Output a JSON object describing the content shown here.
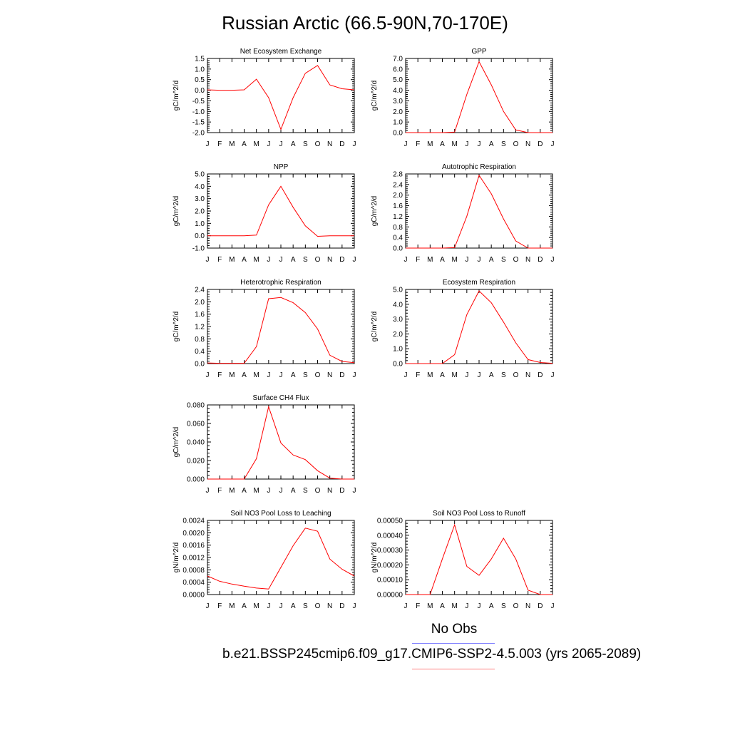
{
  "title": "Russian Arctic (66.5-90N,70-170E)",
  "legend": {
    "obs_label": "No Obs",
    "case_label": "b.e21.BSSP245cmip6.f09_g17.CMIP6-SSP2-4.5.003 (yrs 2065-2089)",
    "obs_color": "#8080ff",
    "case_color": "#ff8080"
  },
  "colors": {
    "series": "#ff0000",
    "axis": "#000000"
  },
  "chart_data": [
    {
      "type": "line",
      "title": "Net Ecosystem Exchange",
      "ylabel": "gC/m^2/d",
      "ylim": [
        -2.0,
        1.5
      ],
      "yticks": [
        "-2.0",
        "-1.5",
        "-1.0",
        "-0.5",
        "0.0",
        "0.5",
        "1.0",
        "1.5"
      ],
      "x": [
        "J",
        "F",
        "M",
        "A",
        "M",
        "J",
        "J",
        "A",
        "S",
        "O",
        "N",
        "D",
        "J"
      ],
      "values": [
        0.02,
        0.0,
        0.0,
        0.02,
        0.52,
        -0.35,
        -1.85,
        -0.35,
        0.8,
        1.17,
        0.25,
        0.07,
        0.02
      ]
    },
    {
      "type": "line",
      "title": "GPP",
      "ylabel": "gC/m^2/d",
      "ylim": [
        0.0,
        7.0
      ],
      "yticks": [
        "0.0",
        "1.0",
        "2.0",
        "3.0",
        "4.0",
        "5.0",
        "6.0",
        "7.0"
      ],
      "x": [
        "J",
        "F",
        "M",
        "A",
        "M",
        "J",
        "J",
        "A",
        "S",
        "O",
        "N",
        "D",
        "J"
      ],
      "values": [
        0.0,
        0.0,
        0.0,
        0.0,
        0.05,
        3.6,
        6.7,
        4.5,
        2.0,
        0.25,
        0.0,
        0.0,
        0.0
      ]
    },
    {
      "type": "line",
      "title": "NPP",
      "ylabel": "gC/m^2/d",
      "ylim": [
        -1.0,
        5.0
      ],
      "yticks": [
        "-1.0",
        "0.0",
        "1.0",
        "2.0",
        "3.0",
        "4.0",
        "5.0"
      ],
      "x": [
        "J",
        "F",
        "M",
        "A",
        "M",
        "J",
        "J",
        "A",
        "S",
        "O",
        "N",
        "D",
        "J"
      ],
      "values": [
        0.0,
        0.0,
        0.0,
        0.0,
        0.05,
        2.5,
        4.0,
        2.3,
        0.8,
        -0.05,
        0.0,
        0.0,
        0.0
      ]
    },
    {
      "type": "line",
      "title": "Autotrophic Respiration",
      "ylabel": "gC/m^2/d",
      "ylim": [
        0.0,
        2.8
      ],
      "yticks": [
        "0.0",
        "0.4",
        "0.8",
        "1.2",
        "1.6",
        "2.0",
        "2.4",
        "2.8"
      ],
      "x": [
        "J",
        "F",
        "M",
        "A",
        "M",
        "J",
        "J",
        "A",
        "S",
        "O",
        "N",
        "D",
        "J"
      ],
      "values": [
        0.0,
        0.0,
        0.0,
        0.0,
        0.02,
        1.2,
        2.75,
        2.05,
        1.1,
        0.27,
        0.0,
        0.0,
        0.0
      ]
    },
    {
      "type": "line",
      "title": "Heterotrophic Respiration",
      "ylabel": "gC/m^2/d",
      "ylim": [
        0.0,
        2.4
      ],
      "yticks": [
        "0.0",
        "0.4",
        "0.8",
        "1.2",
        "1.6",
        "2.0",
        "2.4"
      ],
      "x": [
        "J",
        "F",
        "M",
        "A",
        "M",
        "J",
        "J",
        "A",
        "S",
        "O",
        "N",
        "D",
        "J"
      ],
      "values": [
        0.02,
        0.01,
        0.01,
        0.01,
        0.55,
        2.1,
        2.14,
        1.97,
        1.65,
        1.12,
        0.27,
        0.07,
        0.03
      ]
    },
    {
      "type": "line",
      "title": "Ecosystem Respiration",
      "ylabel": "gC/m^2/d",
      "ylim": [
        0.0,
        5.0
      ],
      "yticks": [
        "0.0",
        "1.0",
        "2.0",
        "3.0",
        "4.0",
        "5.0"
      ],
      "x": [
        "J",
        "F",
        "M",
        "A",
        "M",
        "J",
        "J",
        "A",
        "S",
        "O",
        "N",
        "D",
        "J"
      ],
      "values": [
        0.0,
        0.0,
        0.0,
        0.0,
        0.6,
        3.3,
        4.9,
        4.1,
        2.8,
        1.4,
        0.27,
        0.07,
        0.02
      ]
    },
    {
      "type": "line",
      "title": "Surface CH4 Flux",
      "ylabel": "gC/m^2/d",
      "ylim": [
        0.0,
        0.08
      ],
      "yticks": [
        "0.000",
        "0.020",
        "0.040",
        "0.060",
        "0.080"
      ],
      "x": [
        "J",
        "F",
        "M",
        "A",
        "M",
        "J",
        "J",
        "A",
        "S",
        "O",
        "N",
        "D",
        "J"
      ],
      "values": [
        0.0,
        0.0,
        0.0,
        0.0,
        0.022,
        0.078,
        0.039,
        0.026,
        0.021,
        0.009,
        0.001,
        0.0,
        0.0
      ]
    },
    {
      "type": "line",
      "title": "Soil NO3 Pool Loss to Leaching",
      "ylabel": "gN/m^2/d",
      "ylim": [
        0.0,
        0.0024
      ],
      "yticks": [
        "0.0000",
        "0.0004",
        "0.0008",
        "0.0012",
        "0.0016",
        "0.0020",
        "0.0024"
      ],
      "x": [
        "J",
        "F",
        "M",
        "A",
        "M",
        "J",
        "J",
        "A",
        "S",
        "O",
        "N",
        "D",
        "J"
      ],
      "values": [
        0.0006,
        0.00043,
        0.00034,
        0.00027,
        0.00021,
        0.00018,
        0.00088,
        0.00158,
        0.00215,
        0.00205,
        0.00115,
        0.00082,
        0.0006
      ]
    },
    {
      "type": "line",
      "title": "Soil NO3 Pool Loss to Runoff",
      "ylabel": "gN/m^2/d",
      "ylim": [
        0.0,
        0.0005
      ],
      "yticks": [
        "0.00000",
        "0.00010",
        "0.00020",
        "0.00030",
        "0.00040",
        "0.00050"
      ],
      "x": [
        "J",
        "F",
        "M",
        "A",
        "M",
        "J",
        "J",
        "A",
        "S",
        "O",
        "N",
        "D",
        "J"
      ],
      "values": [
        0.0,
        0.0,
        0.0,
        0.00024,
        0.00047,
        0.00019,
        0.00013,
        0.00024,
        0.00038,
        0.00024,
        3e-05,
        0.0,
        0.0
      ]
    }
  ]
}
